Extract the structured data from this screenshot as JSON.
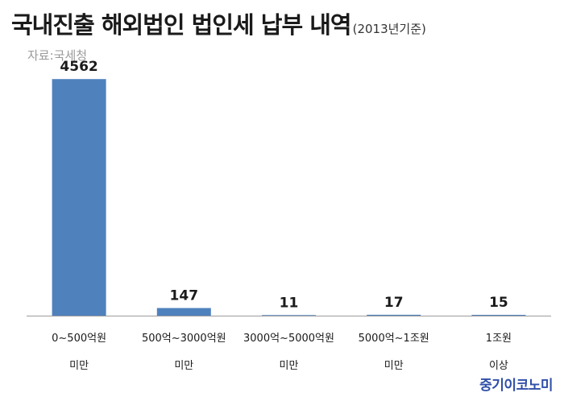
{
  "header": {
    "title": "국내진출 해외법인 법인세 납부 내역",
    "subtitle": "(2013년기준)",
    "source": "자료:국세청"
  },
  "brand": "중기이코노미",
  "colors": {
    "bar": "#4f81bd",
    "brand": "#2f4fa8"
  },
  "chart_data": {
    "type": "bar",
    "categories": [
      [
        "0~500억원",
        "미만"
      ],
      [
        "500억~3000억원",
        "미만"
      ],
      [
        "3000억~5000억원",
        "미만"
      ],
      [
        "5000억~1조원",
        "미만"
      ],
      [
        "1조원",
        "이상"
      ]
    ],
    "values": [
      4562,
      147,
      11,
      17,
      15
    ],
    "title": "국내진출 해외법인 법인세 납부 내역",
    "ylim": [
      0,
      5000
    ],
    "grid": false,
    "legend": "none"
  }
}
